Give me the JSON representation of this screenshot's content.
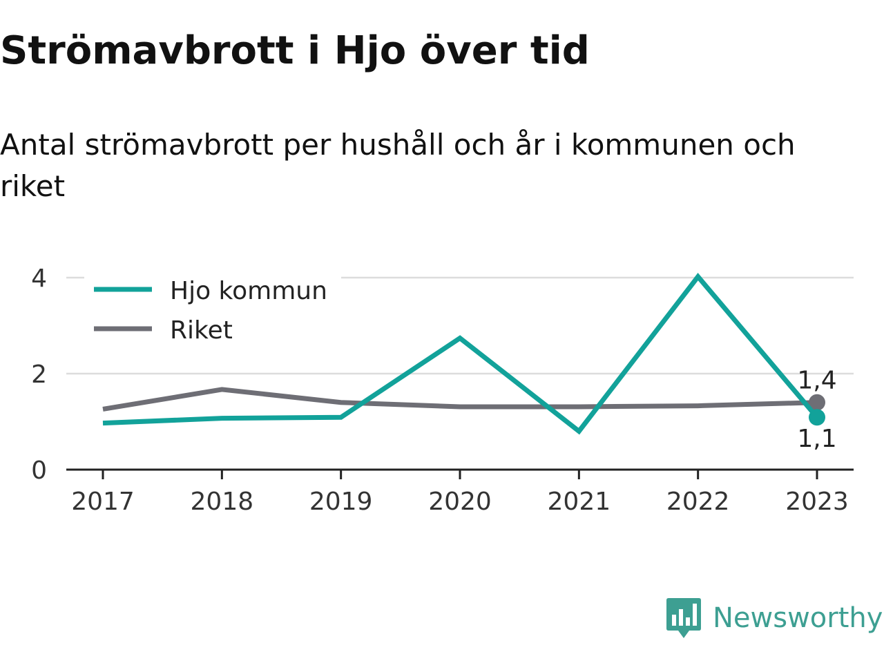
{
  "chart_data": {
    "type": "line",
    "title": "Strömavbrott i Hjo över tid",
    "subtitle": "Antal strömavbrott per hushåll och år i kommunen och riket",
    "x": [
      "2017",
      "2018",
      "2019",
      "2020",
      "2021",
      "2022",
      "2023"
    ],
    "series": [
      {
        "name": "Hjo kommun",
        "color": "#12a29a",
        "values": [
          0.97,
          1.07,
          1.09,
          2.74,
          0.8,
          4.02,
          1.09
        ],
        "end_label": "1,1"
      },
      {
        "name": "Riket",
        "color": "#6e6e75",
        "values": [
          1.26,
          1.67,
          1.4,
          1.31,
          1.31,
          1.33,
          1.4
        ],
        "end_label": "1,4"
      }
    ],
    "ylim": [
      0,
      4
    ],
    "yticks": [
      "0",
      "2",
      "4"
    ],
    "grid": true,
    "legend": "top-left"
  },
  "brand": {
    "name": "Newsworthy",
    "icon": "newsworthy-logo-icon",
    "color": "#3d9f92"
  }
}
